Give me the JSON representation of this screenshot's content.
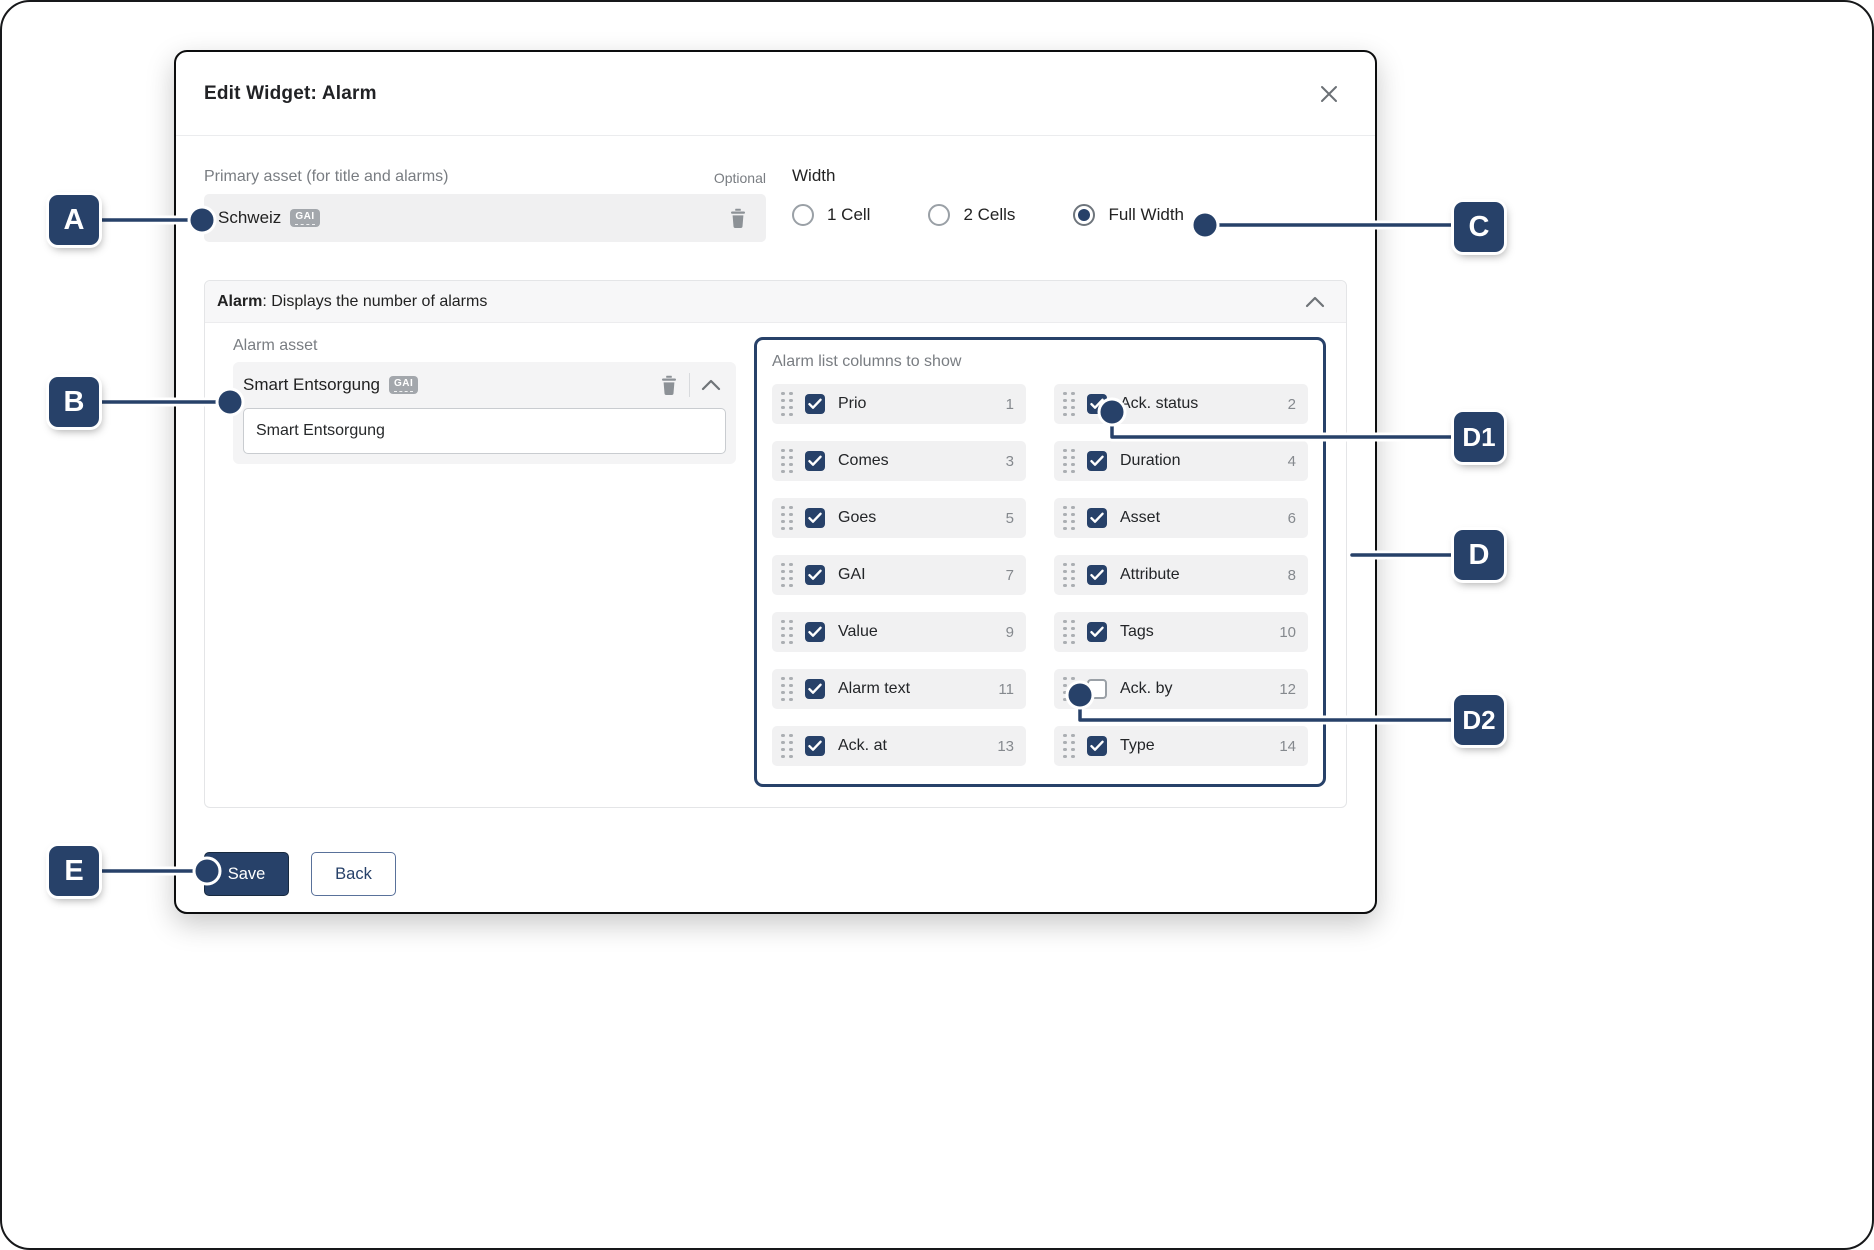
{
  "dialog": {
    "title": "Edit Widget: Alarm"
  },
  "icons": {
    "close": "x-close",
    "trash": "trash-can",
    "collapse": "chevron-up",
    "drag_handle": "drag-dots"
  },
  "primary_asset": {
    "label": "Primary asset (for title and alarms)",
    "optional_label": "Optional",
    "value": "Schweiz",
    "badge": "GAI"
  },
  "width": {
    "label": "Width",
    "options": [
      {
        "label": "1 Cell",
        "selected": false
      },
      {
        "label": "2 Cells",
        "selected": false
      },
      {
        "label": "Full Width",
        "selected": true
      }
    ]
  },
  "alarm_section": {
    "title_bold": "Alarm",
    "title_rest": ": Displays the number of alarms",
    "alarm_asset": {
      "label": "Alarm asset",
      "value": "Smart Entsorgung",
      "badge": "GAI",
      "input_value": "Smart Entsorgung"
    },
    "columns_panel": {
      "label": "Alarm list columns to show",
      "items": [
        {
          "label": "Prio",
          "order": "1",
          "checked": true
        },
        {
          "label": "Ack. status",
          "order": "2",
          "checked": true
        },
        {
          "label": "Comes",
          "order": "3",
          "checked": true
        },
        {
          "label": "Duration",
          "order": "4",
          "checked": true
        },
        {
          "label": "Goes",
          "order": "5",
          "checked": true
        },
        {
          "label": "Asset",
          "order": "6",
          "checked": true
        },
        {
          "label": "GAI",
          "order": "7",
          "checked": true
        },
        {
          "label": "Attribute",
          "order": "8",
          "checked": true
        },
        {
          "label": "Value",
          "order": "9",
          "checked": true
        },
        {
          "label": "Tags",
          "order": "10",
          "checked": true
        },
        {
          "label": "Alarm text",
          "order": "11",
          "checked": true
        },
        {
          "label": "Ack. by",
          "order": "12",
          "checked": false
        },
        {
          "label": "Ack. at",
          "order": "13",
          "checked": true
        },
        {
          "label": "Type",
          "order": "14",
          "checked": true
        }
      ]
    }
  },
  "footer": {
    "save_label": "Save",
    "back_label": "Back"
  },
  "annotations": [
    "A",
    "B",
    "C",
    "D1",
    "D",
    "D2",
    "E"
  ],
  "colors": {
    "accent": "#274169",
    "item_bg": "#f1f1f2",
    "field_bg": "#f0f0f1"
  }
}
